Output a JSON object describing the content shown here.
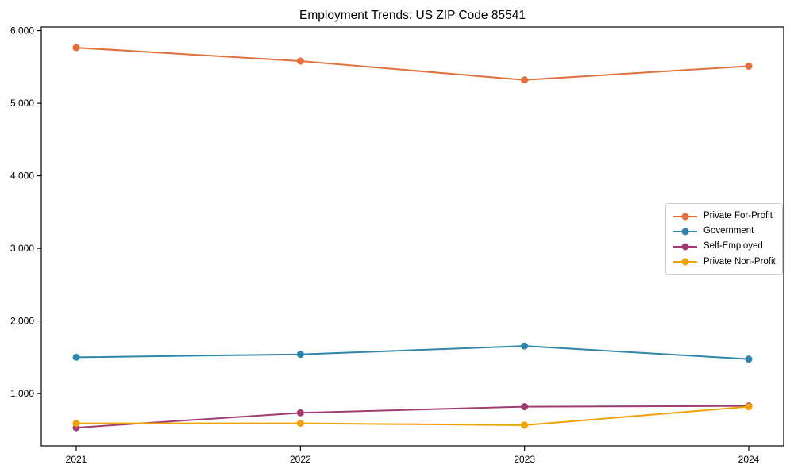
{
  "chart_data": {
    "type": "line",
    "title": "Employment Trends: US ZIP Code 85541",
    "x": [
      2021,
      2022,
      2023,
      2024
    ],
    "x_tick_labels": [
      "2021",
      "2022",
      "2023",
      "2024"
    ],
    "series": [
      {
        "name": "Private For-Profit",
        "color": "#E1703C",
        "values": [
          5765,
          5580,
          5320,
          5510
        ]
      },
      {
        "name": "Government",
        "color": "#2E86AB",
        "values": [
          1500,
          1540,
          1655,
          1475
        ]
      },
      {
        "name": "Self-Employed",
        "color": "#A23B72",
        "values": [
          530,
          735,
          820,
          830
        ]
      },
      {
        "name": "Private Non-Profit",
        "color": "#F0A202",
        "values": [
          590,
          590,
          565,
          820
        ]
      }
    ],
    "ylim": [
      280,
      6050
    ],
    "yticks": [
      {
        "value": 1000,
        "label": "1,000"
      },
      {
        "value": 2000,
        "label": "2,000"
      },
      {
        "value": 3000,
        "label": "3,000"
      },
      {
        "value": 4000,
        "label": "4,000"
      },
      {
        "value": 5000,
        "label": "5,000"
      },
      {
        "value": 6000,
        "label": "6,000"
      }
    ],
    "grid": false,
    "legend_position": "center-right",
    "axis_color": "#000000",
    "legend_border_color": "#cccccc"
  }
}
